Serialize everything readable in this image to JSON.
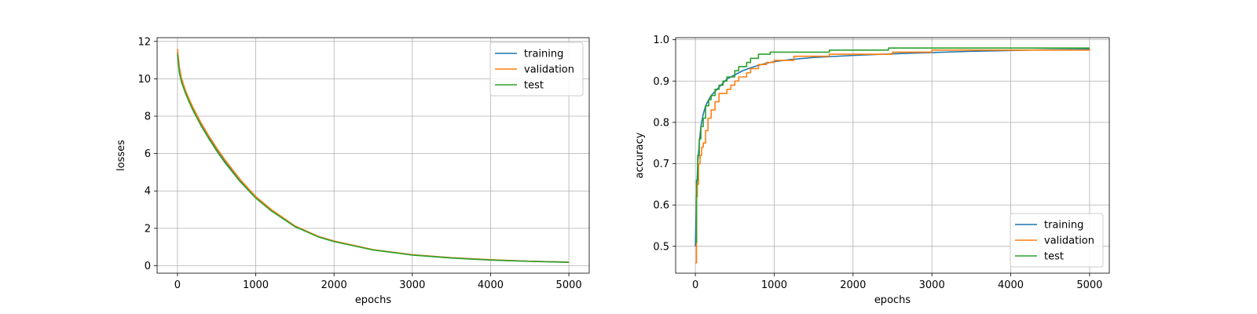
{
  "chart_data": [
    {
      "type": "line",
      "id": "losses",
      "title": "",
      "xlabel": "epochs",
      "ylabel": "losses",
      "xlim": [
        -260,
        5260
      ],
      "ylim": [
        -0.4,
        12.2
      ],
      "xticks": [
        0,
        1000,
        2000,
        3000,
        4000,
        5000
      ],
      "yticks": [
        0,
        2,
        4,
        6,
        8,
        10,
        12
      ],
      "xtick_labels": [
        "0",
        "1000",
        "2000",
        "3000",
        "4000",
        "5000"
      ],
      "ytick_labels": [
        "0",
        "2",
        "4",
        "6",
        "8",
        "10",
        "12"
      ],
      "grid": true,
      "legend_position": "top-right",
      "series": [
        {
          "name": "training",
          "color": "#1f77b4",
          "x": [
            0,
            25,
            50,
            100,
            150,
            200,
            300,
            400,
            500,
            600,
            800,
            1000,
            1200,
            1500,
            1800,
            2000,
            2500,
            3000,
            3500,
            4000,
            4500,
            5000
          ],
          "y": [
            11.4,
            10.4,
            9.9,
            9.3,
            8.8,
            8.35,
            7.55,
            6.85,
            6.2,
            5.6,
            4.55,
            3.65,
            2.95,
            2.1,
            1.55,
            1.3,
            0.85,
            0.58,
            0.42,
            0.31,
            0.24,
            0.19
          ]
        },
        {
          "name": "validation",
          "color": "#ff7f0e",
          "x": [
            0,
            25,
            50,
            100,
            150,
            200,
            300,
            400,
            500,
            600,
            800,
            1000,
            1200,
            1500,
            1800,
            2000,
            2500,
            3000,
            3500,
            4000,
            4500,
            5000
          ],
          "y": [
            11.6,
            10.6,
            10.05,
            9.4,
            8.9,
            8.45,
            7.65,
            6.95,
            6.3,
            5.7,
            4.62,
            3.7,
            3.0,
            2.13,
            1.57,
            1.32,
            0.86,
            0.59,
            0.43,
            0.32,
            0.24,
            0.19
          ]
        },
        {
          "name": "test",
          "color": "#2ca02c",
          "x": [
            0,
            25,
            50,
            100,
            150,
            200,
            300,
            400,
            500,
            600,
            800,
            1000,
            1200,
            1500,
            1800,
            2000,
            2500,
            3000,
            3500,
            4000,
            4500,
            5000
          ],
          "y": [
            11.3,
            10.3,
            9.85,
            9.25,
            8.75,
            8.3,
            7.5,
            6.8,
            6.15,
            5.55,
            4.5,
            3.62,
            2.93,
            2.09,
            1.54,
            1.29,
            0.84,
            0.57,
            0.41,
            0.3,
            0.23,
            0.18
          ]
        }
      ]
    },
    {
      "type": "line",
      "id": "accuracy",
      "title": "",
      "xlabel": "epochs",
      "ylabel": "accuracy",
      "xlim": [
        -250,
        5250
      ],
      "ylim": [
        0.435,
        1.005
      ],
      "xticks": [
        0,
        1000,
        2000,
        3000,
        4000,
        5000
      ],
      "yticks": [
        0.5,
        0.6,
        0.7,
        0.8,
        0.9,
        1.0
      ],
      "xtick_labels": [
        "0",
        "1000",
        "2000",
        "3000",
        "4000",
        "5000"
      ],
      "ytick_labels": [
        "0.5",
        "0.6",
        "0.7",
        "0.8",
        "0.9",
        "1.0"
      ],
      "grid": true,
      "legend_position": "bottom-right",
      "series": [
        {
          "name": "training",
          "color": "#1f77b4",
          "step": false,
          "x": [
            0,
            15,
            30,
            50,
            70,
            100,
            130,
            170,
            200,
            250,
            300,
            350,
            400,
            500,
            600,
            700,
            800,
            900,
            1000,
            1200,
            1500,
            2000,
            2500,
            3000,
            3500,
            4000,
            4500,
            5000
          ],
          "y": [
            0.5,
            0.62,
            0.7,
            0.75,
            0.79,
            0.82,
            0.84,
            0.855,
            0.865,
            0.875,
            0.885,
            0.895,
            0.905,
            0.915,
            0.925,
            0.932,
            0.938,
            0.943,
            0.947,
            0.952,
            0.957,
            0.962,
            0.966,
            0.969,
            0.972,
            0.974,
            0.976,
            0.977
          ]
        },
        {
          "name": "validation",
          "color": "#ff7f0e",
          "step": true,
          "x": [
            0,
            15,
            25,
            40,
            60,
            80,
            100,
            130,
            160,
            200,
            250,
            300,
            400,
            450,
            500,
            550,
            650,
            700,
            800,
            900,
            1000,
            1250,
            1700,
            2500,
            3000,
            5000
          ],
          "y": [
            0.46,
            0.62,
            0.65,
            0.7,
            0.72,
            0.74,
            0.75,
            0.78,
            0.81,
            0.83,
            0.85,
            0.87,
            0.88,
            0.89,
            0.9,
            0.91,
            0.92,
            0.93,
            0.94,
            0.945,
            0.95,
            0.96,
            0.965,
            0.97,
            0.975,
            0.978
          ]
        },
        {
          "name": "test",
          "color": "#2ca02c",
          "step": true,
          "x": [
            0,
            15,
            30,
            50,
            70,
            100,
            130,
            170,
            200,
            250,
            300,
            350,
            400,
            500,
            550,
            650,
            700,
            800,
            950,
            1700,
            2450,
            5000
          ],
          "y": [
            0.51,
            0.66,
            0.72,
            0.76,
            0.79,
            0.81,
            0.84,
            0.855,
            0.865,
            0.88,
            0.89,
            0.9,
            0.91,
            0.925,
            0.935,
            0.945,
            0.955,
            0.965,
            0.97,
            0.975,
            0.98,
            0.98
          ]
        }
      ]
    }
  ]
}
